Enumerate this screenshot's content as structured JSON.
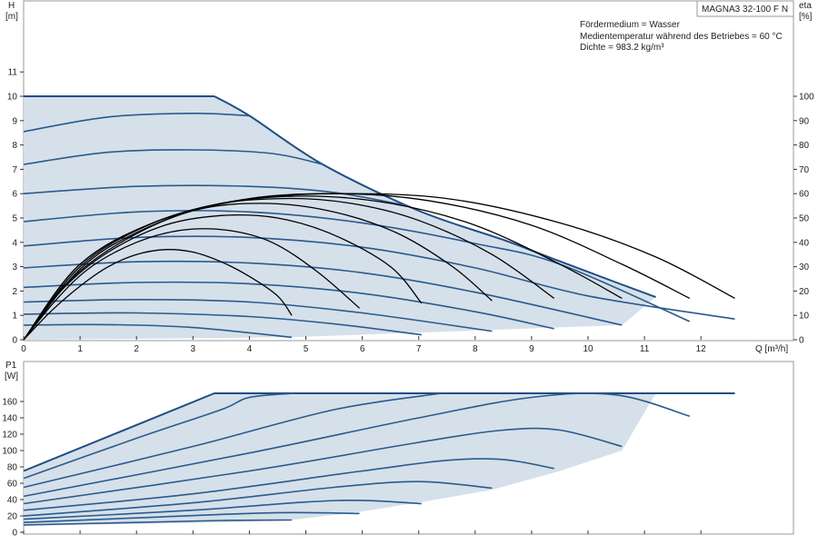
{
  "chart_data": [
    {
      "type": "line",
      "name": "head-efficiency",
      "xlabel": "Q [m³/h]",
      "ylabel_left": [
        "H",
        "[m]"
      ],
      "ylabel_right": [
        "eta",
        "[%]"
      ],
      "xlim": [
        0,
        13.5
      ],
      "ylim_left": [
        0,
        13.5
      ],
      "ylim_right": [
        0,
        135
      ],
      "x_ticks": [
        0,
        1,
        2,
        3,
        4,
        5,
        6,
        7,
        8,
        9,
        10,
        11,
        12
      ],
      "y_ticks_left": [
        0,
        1,
        2,
        3,
        4,
        5,
        6,
        7,
        8,
        9,
        10,
        11
      ],
      "y_ticks_right": [
        0,
        10,
        20,
        30,
        40,
        50,
        60,
        70,
        80,
        90,
        100
      ],
      "grid": false,
      "model_label": "MAGNA3 32-100 F N",
      "info_lines": [
        "Fördermedium = Wasser",
        "Medientemperatur während des Betriebes = 60 °C",
        "Dichte = 983.2 kg/m³"
      ],
      "envelope": {
        "max_head": 10,
        "flat_until": 3.38,
        "boundary": [
          [
            3.38,
            10
          ],
          [
            4,
            9.2
          ],
          [
            5.3,
            7.2
          ],
          [
            7,
            5.3
          ],
          [
            8.5,
            4.1
          ],
          [
            9.3,
            3.4
          ],
          [
            10.5,
            2.35
          ],
          [
            11.2,
            1.75
          ]
        ],
        "bottom": [
          [
            0,
            0
          ],
          [
            4.75,
            0.1
          ],
          [
            10.6,
            0.6
          ],
          [
            11.2,
            1.75
          ]
        ]
      },
      "head_curves": [
        {
          "shutoff": 8.55,
          "points": [
            [
              0,
              8.55
            ],
            [
              1.5,
              9.15
            ],
            [
              3,
              9.3
            ],
            [
              4,
              9.2
            ]
          ]
        },
        {
          "shutoff": 7.2,
          "points": [
            [
              0,
              7.2
            ],
            [
              1.5,
              7.7
            ],
            [
              3,
              7.8
            ],
            [
              4.4,
              7.65
            ],
            [
              5.3,
              7.2
            ]
          ]
        },
        {
          "shutoff": 6.0,
          "points": [
            [
              0,
              6.0
            ],
            [
              2,
              6.3
            ],
            [
              4,
              6.3
            ],
            [
              5.5,
              6.05
            ],
            [
              6.8,
              5.5
            ]
          ]
        },
        {
          "shutoff": 4.85,
          "points": [
            [
              0,
              4.85
            ],
            [
              2,
              5.25
            ],
            [
              4,
              5.25
            ],
            [
              6,
              4.8
            ],
            [
              8,
              3.95
            ],
            [
              9.5,
              3.1
            ],
            [
              11.8,
              0.75
            ]
          ]
        },
        {
          "shutoff": 3.85,
          "points": [
            [
              0,
              3.85
            ],
            [
              2,
              4.2
            ],
            [
              4,
              4.2
            ],
            [
              6,
              3.8
            ],
            [
              8,
              2.95
            ],
            [
              10,
              1.8
            ],
            [
              12.6,
              0.85
            ]
          ]
        },
        {
          "shutoff": 2.95,
          "points": [
            [
              0,
              2.95
            ],
            [
              2,
              3.2
            ],
            [
              4,
              3.15
            ],
            [
              6,
              2.75
            ],
            [
              8,
              1.95
            ],
            [
              10.6,
              0.6
            ]
          ]
        },
        {
          "shutoff": 2.15,
          "points": [
            [
              0,
              2.15
            ],
            [
              2,
              2.35
            ],
            [
              4,
              2.3
            ],
            [
              6,
              1.9
            ],
            [
              8,
              1.15
            ],
            [
              9.4,
              0.45
            ]
          ]
        },
        {
          "shutoff": 1.55,
          "points": [
            [
              0,
              1.55
            ],
            [
              2,
              1.65
            ],
            [
              4,
              1.55
            ],
            [
              6,
              1.1
            ],
            [
              8.3,
              0.35
            ]
          ]
        },
        {
          "shutoff": 1.05,
          "points": [
            [
              0,
              1.05
            ],
            [
              2,
              1.1
            ],
            [
              4,
              0.95
            ],
            [
              5.5,
              0.65
            ],
            [
              7.05,
              0.2
            ]
          ]
        },
        {
          "shutoff": 0.6,
          "points": [
            [
              0,
              0.6
            ],
            [
              1.5,
              0.62
            ],
            [
              3,
              0.5
            ],
            [
              4.75,
              0.1
            ]
          ]
        }
      ],
      "efficiency_curves": [
        {
          "points": [
            [
              0,
              0
            ],
            [
              0.5,
              12
            ],
            [
              1,
              22
            ],
            [
              1.5,
              30
            ],
            [
              2,
              35
            ],
            [
              2.5,
              37
            ],
            [
              3,
              36
            ],
            [
              3.5,
              32
            ],
            [
              4,
              26
            ],
            [
              4.5,
              18
            ],
            [
              4.75,
              10
            ]
          ]
        },
        {
          "points": [
            [
              0,
              0
            ],
            [
              0.6,
              17
            ],
            [
              1.2,
              30
            ],
            [
              2,
              40
            ],
            [
              2.8,
              45
            ],
            [
              3.6,
              45
            ],
            [
              4.4,
              40
            ],
            [
              5.2,
              28
            ],
            [
              5.95,
              13
            ]
          ]
        },
        {
          "points": [
            [
              0,
              0
            ],
            [
              0.7,
              21
            ],
            [
              1.5,
              36
            ],
            [
              2.5,
              47
            ],
            [
              3.5,
              51
            ],
            [
              4.5,
              50
            ],
            [
              5.5,
              43
            ],
            [
              6.5,
              30
            ],
            [
              7.05,
              15
            ]
          ]
        },
        {
          "points": [
            [
              0,
              0
            ],
            [
              0.8,
              24
            ],
            [
              1.8,
              41
            ],
            [
              3,
              53
            ],
            [
              4.2,
              56
            ],
            [
              5.4,
              53
            ],
            [
              6.6,
              44
            ],
            [
              7.6,
              30
            ],
            [
              8.3,
              16
            ]
          ]
        },
        {
          "points": [
            [
              0,
              0
            ],
            [
              1,
              29
            ],
            [
              2,
              44
            ],
            [
              3.3,
              55
            ],
            [
              4.6,
              58
            ],
            [
              5.8,
              56
            ],
            [
              7,
              49
            ],
            [
              8.3,
              35
            ],
            [
              9.4,
              17
            ]
          ]
        },
        {
          "points": [
            [
              0,
              0
            ],
            [
              1,
              30
            ],
            [
              2.2,
              47
            ],
            [
              3.5,
              56
            ],
            [
              5,
              59
            ],
            [
              6.5,
              56
            ],
            [
              8,
              47
            ],
            [
              9.5,
              31
            ],
            [
              10.6,
              17
            ]
          ]
        },
        {
          "points": [
            [
              0,
              0
            ],
            [
              1,
              31
            ],
            [
              2.3,
              48
            ],
            [
              3.8,
              57
            ],
            [
              5.5,
              60
            ],
            [
              7.2,
              57
            ],
            [
              9,
              47
            ],
            [
              10.6,
              31
            ],
            [
              11.8,
              17
            ]
          ]
        },
        {
          "points": [
            [
              0,
              0
            ],
            [
              1,
              31
            ],
            [
              2.4,
              49
            ],
            [
              4,
              58
            ],
            [
              5.6,
              60
            ],
            [
              7.5,
              58
            ],
            [
              9.5,
              48
            ],
            [
              11.2,
              34
            ],
            [
              12.6,
              17
            ]
          ]
        }
      ]
    },
    {
      "type": "line",
      "name": "power",
      "xlim": [
        0,
        13.5
      ],
      "ylim": [
        0,
        180
      ],
      "ylabel": [
        "P1",
        "[W]"
      ],
      "y_ticks": [
        0,
        20,
        40,
        60,
        80,
        100,
        120,
        140,
        160
      ],
      "max_power": 170,
      "envelope": {
        "boundary": [
          [
            0,
            75
          ],
          [
            3.38,
            170
          ],
          [
            11.2,
            170
          ],
          [
            10.6,
            100
          ],
          [
            9.5,
            75
          ],
          [
            8.3,
            52
          ],
          [
            7.05,
            37
          ],
          [
            5.95,
            25
          ],
          [
            4.75,
            15
          ],
          [
            3.5,
            12
          ],
          [
            0,
            8
          ]
        ]
      },
      "power_curves": [
        {
          "points": [
            [
              0,
              75
            ],
            [
              3.38,
              170
            ],
            [
              12.6,
              170
            ]
          ]
        },
        {
          "points": [
            [
              0,
              66
            ],
            [
              2,
              115
            ],
            [
              3.5,
              150
            ],
            [
              4,
              165
            ],
            [
              4.8,
              170
            ]
          ]
        },
        {
          "points": [
            [
              0,
              55
            ],
            [
              3,
              105
            ],
            [
              5.5,
              150
            ],
            [
              7.4,
              170
            ]
          ]
        },
        {
          "points": [
            [
              0,
              44
            ],
            [
              4,
              97
            ],
            [
              7,
              140
            ],
            [
              9,
              165
            ],
            [
              10.5,
              168
            ],
            [
              11.8,
              142
            ]
          ]
        },
        {
          "points": [
            [
              0,
              35
            ],
            [
              4,
              75
            ],
            [
              7,
              110
            ],
            [
              8.5,
              125
            ],
            [
              9.5,
              125
            ],
            [
              10.6,
              105
            ]
          ]
        },
        {
          "points": [
            [
              0,
              27
            ],
            [
              3,
              47
            ],
            [
              6,
              75
            ],
            [
              7.5,
              88
            ],
            [
              8.5,
              89
            ],
            [
              9.4,
              78
            ]
          ]
        },
        {
          "points": [
            [
              0,
              20
            ],
            [
              3,
              36
            ],
            [
              5.5,
              55
            ],
            [
              7,
              62
            ],
            [
              8.3,
              54
            ]
          ]
        },
        {
          "points": [
            [
              0,
              16
            ],
            [
              3,
              27
            ],
            [
              5,
              37
            ],
            [
              6,
              39
            ],
            [
              7.05,
              35
            ]
          ]
        },
        {
          "points": [
            [
              0,
              12
            ],
            [
              2.5,
              19
            ],
            [
              4.5,
              24
            ],
            [
              5.95,
              23
            ]
          ]
        },
        {
          "points": [
            [
              0,
              9
            ],
            [
              2,
              12
            ],
            [
              3.5,
              14.5
            ],
            [
              4.75,
              15
            ]
          ]
        }
      ]
    }
  ]
}
